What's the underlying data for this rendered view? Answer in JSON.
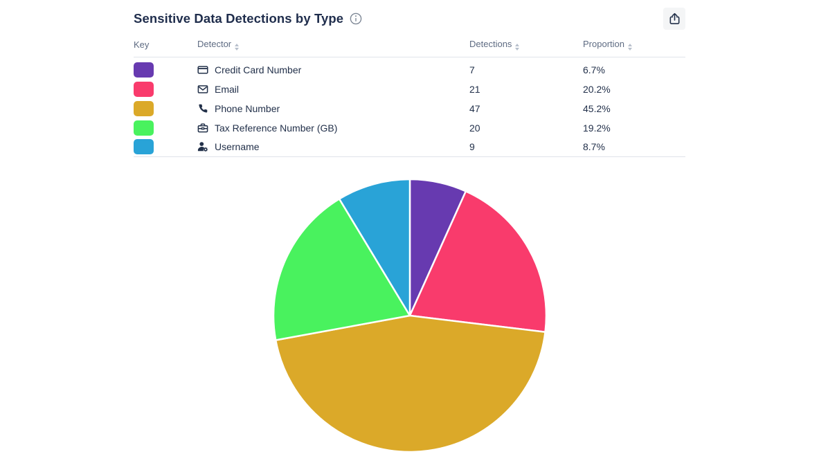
{
  "header": {
    "title": "Sensitive Data Detections by Type",
    "info_icon": "info-icon",
    "export_icon": "share-icon"
  },
  "table": {
    "columns": [
      {
        "label": "Key",
        "sortable": false
      },
      {
        "label": "Detector",
        "sortable": true
      },
      {
        "label": "Detections",
        "sortable": true
      },
      {
        "label": "Proportion",
        "sortable": true
      }
    ],
    "rows": [
      {
        "key_color": "#673ab0",
        "icon": "credit-card-icon",
        "detector": "Credit Card Number",
        "detections": "7",
        "proportion": "6.7%"
      },
      {
        "key_color": "#f93b6c",
        "icon": "email-icon",
        "detector": "Email",
        "detections": "21",
        "proportion": "20.2%"
      },
      {
        "key_color": "#dba929",
        "icon": "phone-icon",
        "detector": "Phone Number",
        "detections": "47",
        "proportion": "45.2%"
      },
      {
        "key_color": "#49f25e",
        "icon": "briefcase-icon",
        "detector": "Tax Reference Number (GB)",
        "detections": "20",
        "proportion": "19.2%"
      },
      {
        "key_color": "#29a3d7",
        "icon": "user-gear-icon",
        "detector": "Username",
        "detections": "9",
        "proportion": "8.7%"
      }
    ]
  },
  "chart_data": {
    "type": "pie",
    "title": "Sensitive Data Detections by Type",
    "categories": [
      "Credit Card Number",
      "Email",
      "Phone Number",
      "Tax Reference Number (GB)",
      "Username"
    ],
    "values": [
      7,
      21,
      47,
      20,
      9
    ],
    "proportion_labels": [
      "6.7%",
      "20.2%",
      "45.2%",
      "19.2%",
      "8.7%"
    ],
    "colors": [
      "#673ab0",
      "#f93b6c",
      "#dba929",
      "#49f25e",
      "#29a3d7"
    ],
    "start_angle_deg": 0,
    "direction": "clockwise",
    "slice_separator_color": "#ffffff",
    "legend_position": "table-above"
  },
  "colors": {
    "title_text": "#1f2d4c",
    "cell_text": "#22304a",
    "header_text": "#5e6b82",
    "divider": "#dfe3ea",
    "export_button_bg": "#f4f5f6",
    "info_icon": "#7d8795"
  }
}
